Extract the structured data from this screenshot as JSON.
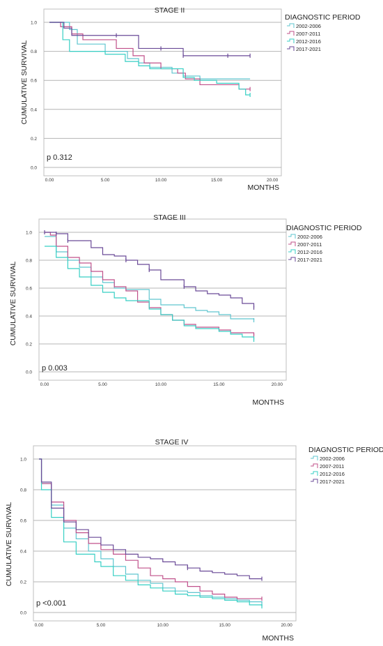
{
  "chart_data": [
    {
      "type": "line",
      "title": "STAGE II",
      "xlabel": "MONTHS",
      "ylabel": "CUMULATIVE SURVIVAL",
      "xlim": [
        0,
        20
      ],
      "ylim": [
        0,
        1
      ],
      "x_ticks": [
        "0.00",
        "5.00",
        "10.00",
        "15.00",
        "20.00"
      ],
      "y_ticks": [
        "0.0",
        "0.2",
        "0.4",
        "0.6",
        "0.8",
        "1.0"
      ],
      "legend_title": "DIAGNOSTIC PERIOD",
      "legend_position": "right",
      "annotation": "p 0.312",
      "series": [
        {
          "name": "2002-2006",
          "color": "#5fc5cf",
          "steps": [
            [
              0,
              1.0
            ],
            [
              1,
              1.0
            ],
            [
              1.8,
              0.95
            ],
            [
              2.5,
              0.85
            ],
            [
              5,
              0.8
            ],
            [
              7,
              0.75
            ],
            [
              8,
              0.72
            ],
            [
              9,
              0.69
            ],
            [
              11,
              0.65
            ],
            [
              12,
              0.63
            ],
            [
              13.5,
              0.61
            ],
            [
              15.5,
              0.61
            ],
            [
              18,
              0.61
            ]
          ],
          "censors": [
            13.5
          ]
        },
        {
          "name": "2007-2011",
          "color": "#c0508a",
          "steps": [
            [
              0,
              1.0
            ],
            [
              1,
              0.97
            ],
            [
              2,
              0.92
            ],
            [
              3,
              0.88
            ],
            [
              6,
              0.82
            ],
            [
              7.5,
              0.77
            ],
            [
              8.5,
              0.72
            ],
            [
              10,
              0.68
            ],
            [
              11.5,
              0.65
            ],
            [
              12.2,
              0.61
            ],
            [
              13.5,
              0.57
            ],
            [
              15.5,
              0.57
            ],
            [
              17,
              0.54
            ],
            [
              18,
              0.54
            ]
          ],
          "censors": [
            18
          ]
        },
        {
          "name": "2012-2016",
          "color": "#36cfc4",
          "steps": [
            [
              0,
              1.0
            ],
            [
              1.2,
              0.88
            ],
            [
              1.8,
              0.8
            ],
            [
              5,
              0.78
            ],
            [
              6.8,
              0.73
            ],
            [
              8,
              0.7
            ],
            [
              9,
              0.68
            ],
            [
              10.5,
              0.68
            ],
            [
              12,
              0.62
            ],
            [
              13,
              0.6
            ],
            [
              15,
              0.58
            ],
            [
              17,
              0.54
            ],
            [
              17.6,
              0.5
            ],
            [
              18,
              0.5
            ]
          ],
          "censors": [
            18
          ]
        },
        {
          "name": "2017-2021",
          "color": "#6a4a97",
          "steps": [
            [
              0,
              1.0
            ],
            [
              1.3,
              0.96
            ],
            [
              2,
              0.91
            ],
            [
              6,
              0.91
            ],
            [
              8,
              0.82
            ],
            [
              12,
              0.77
            ],
            [
              18,
              0.77
            ]
          ],
          "censors": [
            6,
            10,
            12,
            16,
            18
          ]
        }
      ]
    },
    {
      "type": "line",
      "title": "STAGE III",
      "xlabel": "MONTHS",
      "ylabel": "CUMULATIVE SURVIVAL",
      "xlim": [
        0,
        20
      ],
      "ylim": [
        0,
        1
      ],
      "x_ticks": [
        "0.00",
        "5.00",
        "10.00",
        "15.00",
        "20.00"
      ],
      "y_ticks": [
        "0.0",
        "0.2",
        "0.4",
        "0.6",
        "0.8",
        "1.0"
      ],
      "legend_title": "DIAGNOSTIC PERIOD",
      "legend_position": "right",
      "annotation": "p 0.003",
      "series": [
        {
          "name": "2002-2006",
          "color": "#5fc5cf",
          "steps": [
            [
              0,
              0.97
            ],
            [
              1,
              0.86
            ],
            [
              2,
              0.8
            ],
            [
              3,
              0.75
            ],
            [
              4,
              0.68
            ],
            [
              5,
              0.64
            ],
            [
              6,
              0.6
            ],
            [
              7,
              0.59
            ],
            [
              9,
              0.52
            ],
            [
              10,
              0.48
            ],
            [
              12,
              0.46
            ],
            [
              13,
              0.44
            ],
            [
              14,
              0.43
            ],
            [
              15,
              0.41
            ],
            [
              16,
              0.38
            ],
            [
              18,
              0.37
            ]
          ],
          "censors": [
            18
          ]
        },
        {
          "name": "2007-2011",
          "color": "#c0508a",
          "steps": [
            [
              0,
              1.0
            ],
            [
              0.5,
              0.98
            ],
            [
              1,
              0.9
            ],
            [
              2,
              0.82
            ],
            [
              3,
              0.78
            ],
            [
              4,
              0.72
            ],
            [
              5,
              0.66
            ],
            [
              6,
              0.61
            ],
            [
              7,
              0.58
            ],
            [
              8,
              0.5
            ],
            [
              9,
              0.46
            ],
            [
              10,
              0.41
            ],
            [
              11,
              0.37
            ],
            [
              12,
              0.34
            ],
            [
              13,
              0.32
            ],
            [
              15,
              0.3
            ],
            [
              16,
              0.28
            ],
            [
              18,
              0.26
            ]
          ],
          "censors": [
            18
          ]
        },
        {
          "name": "2012-2016",
          "color": "#36cfc4",
          "steps": [
            [
              0,
              0.9
            ],
            [
              1,
              0.82
            ],
            [
              2,
              0.74
            ],
            [
              3,
              0.68
            ],
            [
              4,
              0.62
            ],
            [
              5,
              0.57
            ],
            [
              6,
              0.53
            ],
            [
              7,
              0.51
            ],
            [
              9,
              0.45
            ],
            [
              10,
              0.41
            ],
            [
              11,
              0.37
            ],
            [
              12,
              0.33
            ],
            [
              13,
              0.31
            ],
            [
              15,
              0.29
            ],
            [
              16,
              0.27
            ],
            [
              17,
              0.25
            ],
            [
              18,
              0.23
            ]
          ],
          "censors": [
            18
          ]
        },
        {
          "name": "2017-2021",
          "color": "#6a4a97",
          "steps": [
            [
              0,
              1.0
            ],
            [
              1,
              0.99
            ],
            [
              2,
              0.94
            ],
            [
              4,
              0.89
            ],
            [
              5,
              0.84
            ],
            [
              6,
              0.83
            ],
            [
              7,
              0.8
            ],
            [
              8,
              0.77
            ],
            [
              9,
              0.73
            ],
            [
              10,
              0.66
            ],
            [
              12,
              0.61
            ],
            [
              13,
              0.58
            ],
            [
              14,
              0.56
            ],
            [
              15,
              0.55
            ],
            [
              16,
              0.53
            ],
            [
              17,
              0.49
            ],
            [
              18,
              0.46
            ]
          ],
          "censors": [
            0,
            1,
            2,
            7,
            9,
            12,
            18
          ]
        }
      ]
    },
    {
      "type": "line",
      "title": "STAGE IV",
      "xlabel": "MONTHS",
      "ylabel": "CUMULATIVE SURVIVAL",
      "xlim": [
        0,
        20
      ],
      "ylim": [
        0,
        1
      ],
      "x_ticks": [
        "0.00",
        "5.00",
        "10.00",
        "15.00",
        "20.00"
      ],
      "y_ticks": [
        "0.0",
        "0.2",
        "0.4",
        "0.6",
        "0.8",
        "1.0"
      ],
      "legend_title": "DIAGNOSTIC PERIOD",
      "legend_position": "right",
      "annotation": "p <0.001",
      "series": [
        {
          "name": "2002-2006",
          "color": "#5fc5cf",
          "steps": [
            [
              0,
              1.0
            ],
            [
              0.2,
              0.84
            ],
            [
              1,
              0.7
            ],
            [
              2,
              0.55
            ],
            [
              3,
              0.48
            ],
            [
              4,
              0.4
            ],
            [
              5,
              0.35
            ],
            [
              6,
              0.3
            ],
            [
              7,
              0.25
            ],
            [
              8,
              0.21
            ],
            [
              9,
              0.19
            ],
            [
              10,
              0.16
            ],
            [
              11,
              0.14
            ],
            [
              12,
              0.13
            ],
            [
              13,
              0.11
            ],
            [
              14,
              0.1
            ],
            [
              15,
              0.09
            ],
            [
              16,
              0.08
            ],
            [
              17,
              0.07
            ],
            [
              18,
              0.06
            ]
          ],
          "censors": [
            18
          ]
        },
        {
          "name": "2007-2011",
          "color": "#c0508a",
          "steps": [
            [
              0,
              1.0
            ],
            [
              0.2,
              0.84
            ],
            [
              1,
              0.72
            ],
            [
              2,
              0.6
            ],
            [
              3,
              0.52
            ],
            [
              4,
              0.45
            ],
            [
              5,
              0.41
            ],
            [
              6,
              0.38
            ],
            [
              7,
              0.34
            ],
            [
              8,
              0.29
            ],
            [
              9,
              0.24
            ],
            [
              10,
              0.22
            ],
            [
              11,
              0.2
            ],
            [
              12,
              0.17
            ],
            [
              13,
              0.14
            ],
            [
              14,
              0.12
            ],
            [
              15,
              0.1
            ],
            [
              16,
              0.09
            ],
            [
              18,
              0.09
            ]
          ],
          "censors": [
            18
          ]
        },
        {
          "name": "2012-2016",
          "color": "#36cfc4",
          "steps": [
            [
              0,
              1.0
            ],
            [
              0.2,
              0.8
            ],
            [
              1,
              0.62
            ],
            [
              2,
              0.46
            ],
            [
              3,
              0.38
            ],
            [
              4.5,
              0.33
            ],
            [
              5,
              0.3
            ],
            [
              6,
              0.24
            ],
            [
              7,
              0.21
            ],
            [
              8,
              0.18
            ],
            [
              9,
              0.16
            ],
            [
              10,
              0.14
            ],
            [
              11,
              0.12
            ],
            [
              12,
              0.11
            ],
            [
              13,
              0.1
            ],
            [
              14,
              0.09
            ],
            [
              15,
              0.08
            ],
            [
              16,
              0.07
            ],
            [
              17,
              0.05
            ],
            [
              18,
              0.04
            ]
          ],
          "censors": [
            18
          ]
        },
        {
          "name": "2017-2021",
          "color": "#6a4a97",
          "steps": [
            [
              0,
              1.0
            ],
            [
              0.2,
              0.85
            ],
            [
              1,
              0.68
            ],
            [
              2,
              0.59
            ],
            [
              3,
              0.54
            ],
            [
              4,
              0.49
            ],
            [
              5,
              0.44
            ],
            [
              6,
              0.41
            ],
            [
              7,
              0.38
            ],
            [
              8,
              0.36
            ],
            [
              9,
              0.35
            ],
            [
              10,
              0.33
            ],
            [
              11,
              0.31
            ],
            [
              12,
              0.29
            ],
            [
              13,
              0.27
            ],
            [
              14,
              0.26
            ],
            [
              15,
              0.25
            ],
            [
              16,
              0.24
            ],
            [
              17,
              0.22
            ],
            [
              18,
              0.22
            ]
          ],
          "censors": [
            12,
            18
          ]
        }
      ]
    }
  ]
}
